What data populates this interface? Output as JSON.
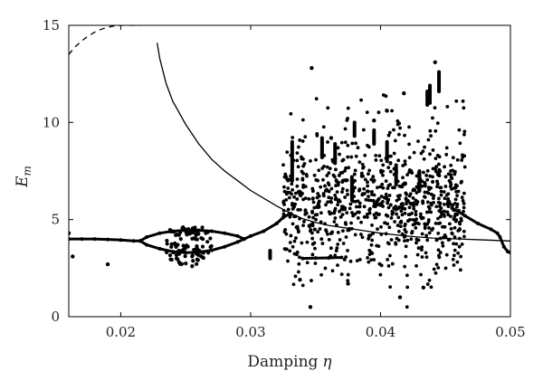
{
  "chart_data": {
    "type": "scatter",
    "title": "",
    "xlabel": "Damping",
    "xlabel_symbol": "η",
    "ylabel": "E",
    "ylabel_subscript": "m",
    "xlim": [
      0.016,
      0.05
    ],
    "ylim": [
      0,
      15
    ],
    "xticks": [
      0.02,
      0.03,
      0.04,
      0.05
    ],
    "xtick_labels": [
      "0.02",
      "0.03",
      "0.04",
      "0.05"
    ],
    "yticks": [
      0,
      5,
      10,
      15
    ],
    "ytick_labels": [
      "0",
      "5",
      "10",
      "15"
    ],
    "grid": false,
    "legend": "none",
    "series": [
      {
        "style": "dashed",
        "x": [
          0.016,
          0.0165,
          0.017,
          0.0175,
          0.018,
          0.0185,
          0.019,
          0.0195,
          0.02,
          0.0205,
          0.021,
          0.0215
        ],
        "y": [
          13.5,
          13.9,
          14.2,
          14.45,
          14.65,
          14.8,
          14.9,
          14.97,
          15.0,
          15.0,
          15.0,
          15.0
        ]
      },
      {
        "style": "solid",
        "x": [
          0.0228,
          0.023,
          0.0235,
          0.024,
          0.025,
          0.026,
          0.027,
          0.028,
          0.029,
          0.03,
          0.031,
          0.032,
          0.033,
          0.034,
          0.035,
          0.036,
          0.038,
          0.04,
          0.042,
          0.044,
          0.046,
          0.048,
          0.05
        ],
        "y": [
          14.1,
          13.3,
          12.0,
          11.1,
          9.9,
          8.9,
          8.1,
          7.5,
          7.0,
          6.5,
          6.1,
          5.7,
          5.35,
          5.05,
          4.85,
          4.7,
          4.5,
          4.3,
          4.15,
          4.05,
          4.0,
          3.95,
          3.9
        ]
      },
      {
        "style": "thick",
        "x": [
          0.016,
          0.017,
          0.018,
          0.019,
          0.02,
          0.021,
          0.0215
        ],
        "y": [
          4.0,
          4.0,
          4.0,
          3.98,
          3.95,
          3.9,
          3.9
        ]
      },
      {
        "style": "thick",
        "x": [
          0.0215,
          0.022,
          0.023,
          0.024,
          0.025,
          0.026,
          0.027,
          0.028,
          0.029,
          0.0295
        ],
        "y": [
          3.9,
          4.1,
          4.3,
          4.4,
          4.45,
          4.45,
          4.4,
          4.3,
          4.15,
          4.0
        ]
      },
      {
        "style": "thick",
        "x": [
          0.0215,
          0.022,
          0.023,
          0.024,
          0.025,
          0.026,
          0.027,
          0.028,
          0.029,
          0.0295
        ],
        "y": [
          3.9,
          3.7,
          3.5,
          3.35,
          3.3,
          3.32,
          3.42,
          3.6,
          3.85,
          4.0
        ]
      },
      {
        "style": "thick",
        "x": [
          0.0295,
          0.03,
          0.031,
          0.032,
          0.0325,
          0.033
        ],
        "y": [
          4.0,
          4.15,
          4.4,
          4.8,
          5.1,
          5.3
        ]
      },
      {
        "style": "thick",
        "x": [
          0.034,
          0.035,
          0.036,
          0.037
        ],
        "y": [
          3.0,
          3.02,
          3.03,
          3.05
        ]
      },
      {
        "style": "thick",
        "x": [
          0.0455,
          0.0465,
          0.0475,
          0.0485,
          0.049,
          0.0492,
          0.0495,
          0.0498,
          0.05
        ],
        "y": [
          5.6,
          5.2,
          4.8,
          4.5,
          4.3,
          4.1,
          3.6,
          3.35,
          3.3
        ]
      },
      {
        "style": "bars",
        "x": [
          0.0315,
          0.0332,
          0.0355,
          0.0365,
          0.0378,
          0.038,
          0.0395,
          0.0405,
          0.0412,
          0.043,
          0.0436,
          0.0438,
          0.0445
        ],
        "y_low": [
          3.0,
          7.0,
          8.2,
          7.9,
          6.0,
          9.3,
          8.9,
          8.0,
          6.8,
          6.5,
          10.9,
          11.0,
          11.6
        ],
        "y_high": [
          3.4,
          9.0,
          9.2,
          8.9,
          7.2,
          10.0,
          9.6,
          9.0,
          7.8,
          7.5,
          11.6,
          11.9,
          12.6
        ]
      },
      {
        "style": "points",
        "x": [
          0.019,
          0.0163,
          0.016,
          0.0248,
          0.0255,
          0.0245,
          0.0252,
          0.0243,
          0.0258,
          0.0347,
          0.0362,
          0.0395,
          0.0405,
          0.0418,
          0.0442,
          0.0338,
          0.0346,
          0.0375,
          0.0415,
          0.0433
        ],
        "y": [
          2.7,
          3.1,
          4.3,
          4.6,
          2.6,
          2.8,
          4.4,
          3.0,
          4.2,
          12.8,
          9.2,
          10.1,
          10.6,
          11.5,
          13.1,
          1.9,
          0.5,
          1.7,
          1.0,
          1.5
        ]
      },
      {
        "style": "chaotic-cloud",
        "x_range": [
          0.0325,
          0.0465
        ],
        "y_range": [
          0.5,
          13.1
        ],
        "center_y": 5.8
      }
    ]
  }
}
